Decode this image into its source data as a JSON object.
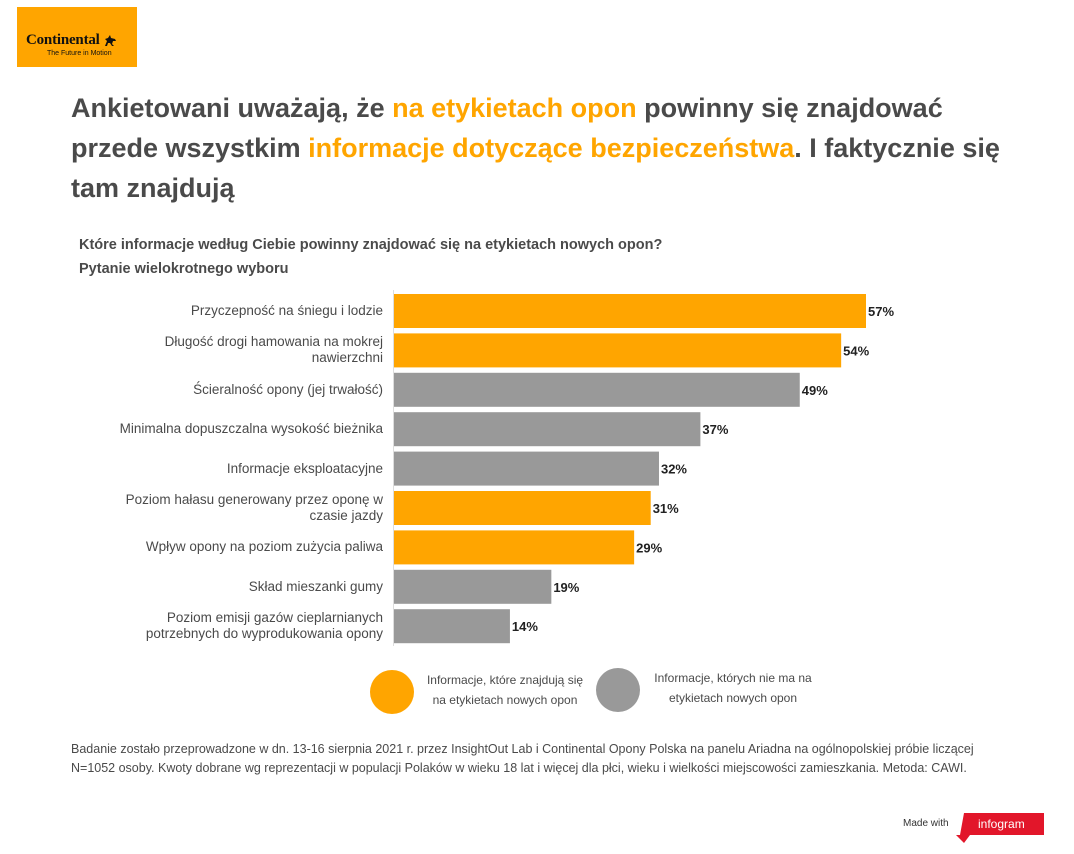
{
  "brand": {
    "name": "Continental",
    "tagline": "The Future in Motion",
    "color": "#ffa500"
  },
  "headline": {
    "part1": "Ankietowani uważają, że ",
    "highlight1": "na etykietach opon",
    "part2": " powinny się znajdować przede wszystkim ",
    "highlight2": "informacje dotyczące bezpieczeństwa",
    "part3": ". I faktycznie się tam znajdują"
  },
  "question": {
    "line1": "Które informacje według Ciebie powinny znajdować się na etykietach nowych opon?",
    "line2": "Pytanie wielokrotnego wyboru"
  },
  "chart_data": {
    "type": "bar",
    "orientation": "horizontal",
    "categories": [
      "Przyczepność na śniegu i lodzie",
      "Długość drogi hamowania na mokrej nawierzchni",
      "Ścieralność opony (jej trwałość)",
      "Minimalna dopuszczalna wysokość bieżnika",
      "Informacje eksploatacyjne",
      "Poziom hałasu generowany przez oponę w czasie jazdy",
      "Wpływ opony na poziom zużycia paliwa",
      "Skład mieszanki gumy",
      "Poziom emisji gazów cieplarnianych potrzebnych do wyprodukowania opony"
    ],
    "category_lines": [
      [
        "Przyczepność na śniegu i lodzie"
      ],
      [
        "Długość drogi hamowania na mokrej",
        "nawierzchni"
      ],
      [
        "Ścieralność opony (jej trwałość)"
      ],
      [
        "Minimalna dopuszczalna wysokość bieżnika"
      ],
      [
        "Informacje eksploatacyjne"
      ],
      [
        "Poziom hałasu generowany przez oponę w",
        "czasie jazdy"
      ],
      [
        "Wpływ opony na poziom zużycia paliwa"
      ],
      [
        "Skład mieszanki gumy"
      ],
      [
        "Poziom emisji gazów cieplarnianych",
        "potrzebnych do wyprodukowania opony"
      ]
    ],
    "values": [
      57,
      54,
      49,
      37,
      32,
      31,
      29,
      19,
      14
    ],
    "labels": [
      "57%",
      "54%",
      "49%",
      "37%",
      "32%",
      "31%",
      "29%",
      "19%",
      "14%"
    ],
    "groups": [
      "on_label",
      "on_label",
      "not_on_label",
      "not_on_label",
      "not_on_label",
      "on_label",
      "on_label",
      "not_on_label",
      "not_on_label"
    ],
    "unit": "%",
    "xlim": [
      0,
      57
    ],
    "colors": {
      "on_label": "#ffa500",
      "not_on_label": "#999999"
    },
    "legend": [
      {
        "key": "on_label",
        "line1": "Informacje, które znajdują się",
        "line2": "na etykietach nowych opon"
      },
      {
        "key": "not_on_label",
        "line1": "Informacje, których nie ma na",
        "line2": "etykietach nowych opon"
      }
    ]
  },
  "footnote": "Badanie zostało przeprowadzone w dn. 13-16 sierpnia 2021 r. przez InsightOut Lab i Continental Opony Polska na panelu Ariadna na ogólnopolskiej próbie liczącej N=1052 osoby. Kwoty dobrane wg reprezentacji w populacji Polaków w wieku 18 lat i więcej dla płci, wieku i wielkości miejscowości zamieszkania. Metoda: CAWI.",
  "credit": {
    "made_with": "Made with",
    "tool": "infogram",
    "tool_color": "#e2162a"
  }
}
